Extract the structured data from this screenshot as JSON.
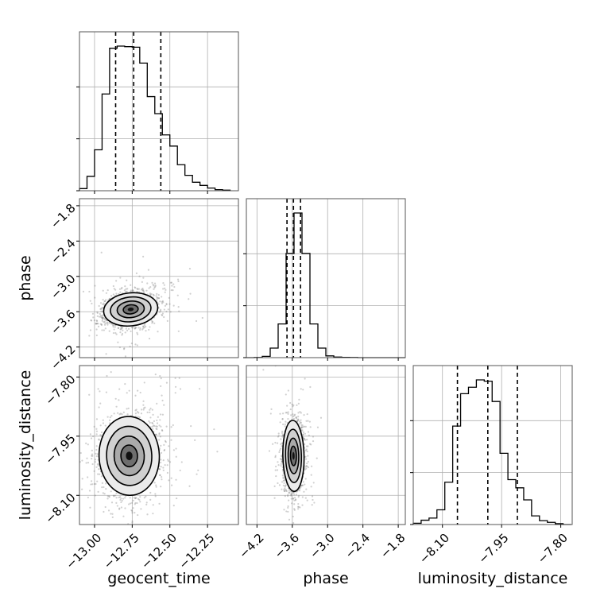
{
  "chart_data": {
    "type": "corner",
    "parameters": [
      "geocent_time",
      "phase",
      "luminosity_distance"
    ],
    "xlabels": [
      "geocent_time",
      "phase",
      "luminosity_distance"
    ],
    "ylabels": [
      "",
      "phase",
      "luminosity_distance"
    ],
    "ticks": {
      "geocent_time": [
        "−13.00",
        "−12.75",
        "−12.50",
        "−12.25"
      ],
      "phase": [
        "−4.2",
        "−3.6",
        "−3.0",
        "−2.4",
        "−1.8"
      ],
      "luminosity_distance": [
        "−8.10",
        "−7.95",
        "−7.80"
      ]
    },
    "tick_values": {
      "geocent_time": [
        -13.0,
        -12.75,
        -12.5,
        -12.25
      ],
      "phase": [
        -4.2,
        -3.6,
        -3.0,
        -2.4,
        -1.8
      ],
      "luminosity_distance": [
        -8.1,
        -7.95,
        -7.8
      ]
    },
    "ranges": {
      "geocent_time": [
        -13.1,
        -12.045
      ],
      "phase": [
        -4.38,
        -1.68
      ],
      "luminosity_distance": [
        -8.174,
        -7.771
      ]
    },
    "quantiles": {
      "geocent_time": [
        -12.86,
        -12.74,
        -12.56
      ],
      "phase": [
        -3.69,
        -3.58,
        -3.46
      ],
      "luminosity_distance": [
        -8.062,
        -7.985,
        -7.91
      ]
    },
    "histograms": {
      "geocent_time": {
        "bin_edges": [
          -13.1,
          -13.05,
          -13.0,
          -12.95,
          -12.9,
          -12.85,
          -12.8,
          -12.75,
          -12.7,
          -12.65,
          -12.6,
          -12.55,
          -12.5,
          -12.45,
          -12.4,
          -12.35,
          -12.3,
          -12.25,
          -12.2,
          -12.15,
          -12.1
        ],
        "counts": [
          4,
          27,
          77,
          182,
          268,
          272,
          271,
          270,
          240,
          177,
          145,
          105,
          84,
          49,
          29,
          16,
          10,
          5,
          2,
          1
        ]
      },
      "phase": {
        "bin_edges": [
          -4.38,
          -4.245,
          -4.11,
          -3.975,
          -3.84,
          -3.705,
          -3.57,
          -3.435,
          -3.3,
          -3.165,
          -3.03,
          -2.895,
          -2.76,
          -2.625,
          -2.49,
          -2.355,
          -2.22,
          -2.085,
          -1.95,
          -1.815,
          -1.68
        ],
        "counts": [
          0,
          1,
          9,
          66,
          233,
          720,
          1000,
          720,
          233,
          66,
          12,
          4,
          2,
          1,
          0,
          0,
          0,
          0,
          0,
          0
        ]
      },
      "luminosity_distance": {
        "bin_edges": [
          -8.174,
          -8.154,
          -8.134,
          -8.114,
          -8.094,
          -8.074,
          -8.054,
          -8.034,
          -8.014,
          -7.994,
          -7.974,
          -7.954,
          -7.934,
          -7.914,
          -7.894,
          -7.874,
          -7.854,
          -7.834,
          -7.814,
          -7.794,
          -7.774
        ],
        "counts": [
          3,
          10,
          15,
          34,
          98,
          228,
          303,
          318,
          335,
          332,
          285,
          165,
          104,
          85,
          57,
          20,
          9,
          5,
          2,
          0
        ]
      }
    },
    "joint": [
      {
        "x": "geocent_time",
        "y": "phase",
        "center": [
          -12.76,
          -3.56
        ],
        "sigma": [
          0.09,
          0.14
        ],
        "rho": 0.25
      },
      {
        "x": "geocent_time",
        "y": "luminosity_distance",
        "center": [
          -12.77,
          -8.0
        ],
        "sigma": [
          0.1,
          0.05
        ],
        "rho": 0.1
      },
      {
        "x": "phase",
        "y": "luminosity_distance",
        "center": [
          -3.58,
          -8.0
        ],
        "sigma": [
          0.09,
          0.045
        ],
        "rho": 0.05
      }
    ],
    "grid": true
  }
}
